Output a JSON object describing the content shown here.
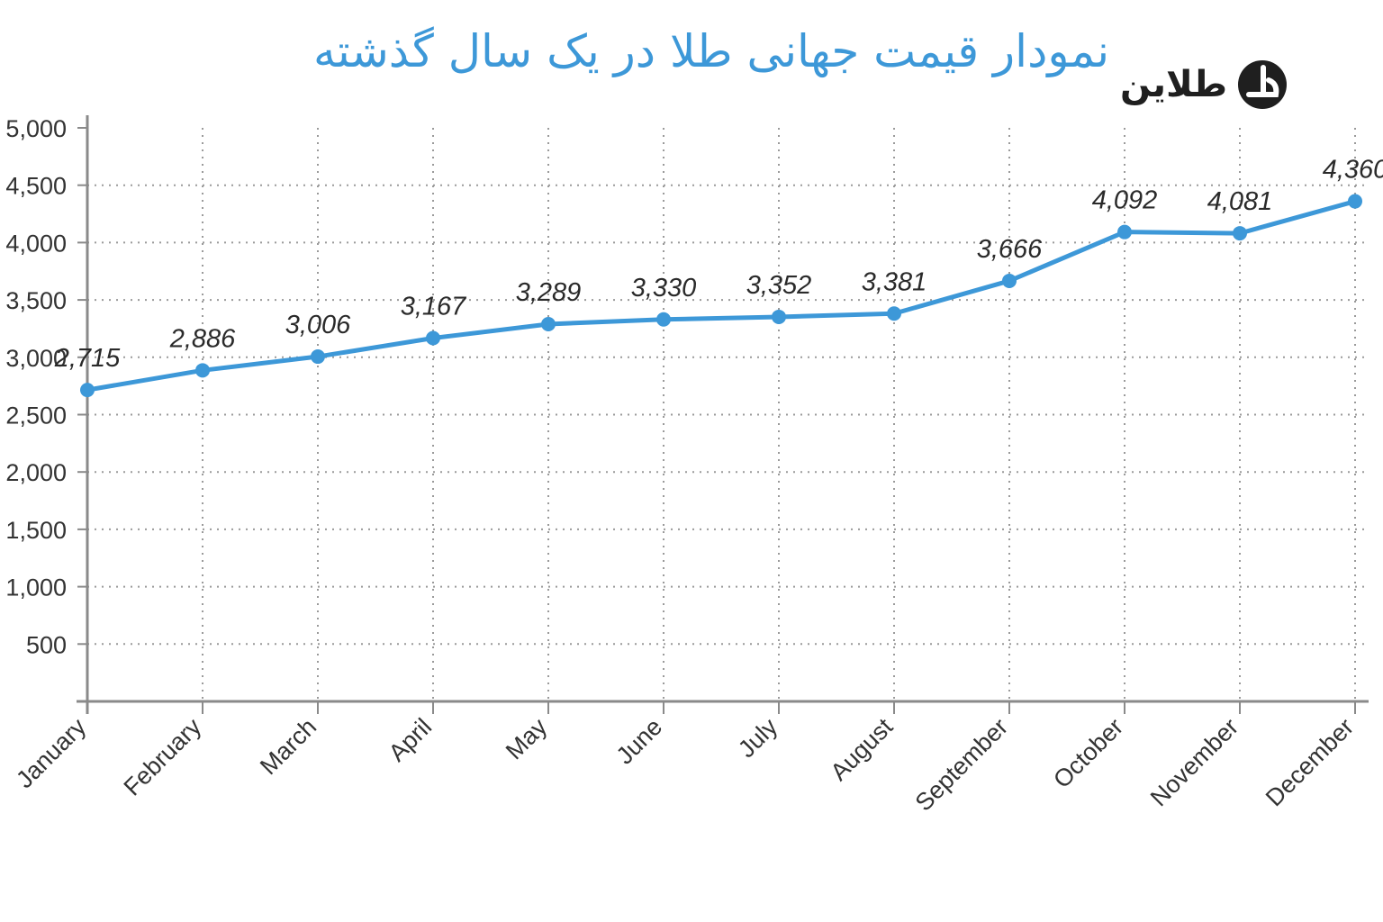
{
  "title": "نمودار قیمت جهانی طلا در یک سال گذشته",
  "logo": {
    "text": "طلاین"
  },
  "colors": {
    "line": "#3d98d8",
    "title": "#3d98d8",
    "grid": "#9a9a9a",
    "axis": "#8a8a8a"
  },
  "chart_data": {
    "type": "line",
    "title": "نمودار قیمت جهانی طلا در یک سال گذشته",
    "categories": [
      "January",
      "February",
      "March",
      "April",
      "May",
      "June",
      "July",
      "August",
      "September",
      "October",
      "November",
      "December"
    ],
    "series": [
      {
        "values": [
          2715,
          2886,
          3006,
          3167,
          3289,
          3330,
          3352,
          3381,
          3666,
          4092,
          4081,
          4360
        ]
      }
    ],
    "data_labels": [
      "2,715",
      "2,886",
      "3,006",
      "3,167",
      "3,289",
      "3,330",
      "3,352",
      "3,381",
      "3,666",
      "4,092",
      "4,081",
      "4,360"
    ],
    "yticks": [
      "500",
      "1,000",
      "1,500",
      "2,000",
      "2,500",
      "3,000",
      "3,500",
      "4,000",
      "4,500",
      "5,000"
    ],
    "ytick_values": [
      500,
      1000,
      1500,
      2000,
      2500,
      3000,
      3500,
      4000,
      4500,
      5000
    ],
    "ylim": [
      0,
      5000
    ],
    "grid": "dotted",
    "legend": "none",
    "xlabel": "",
    "ylabel": ""
  }
}
